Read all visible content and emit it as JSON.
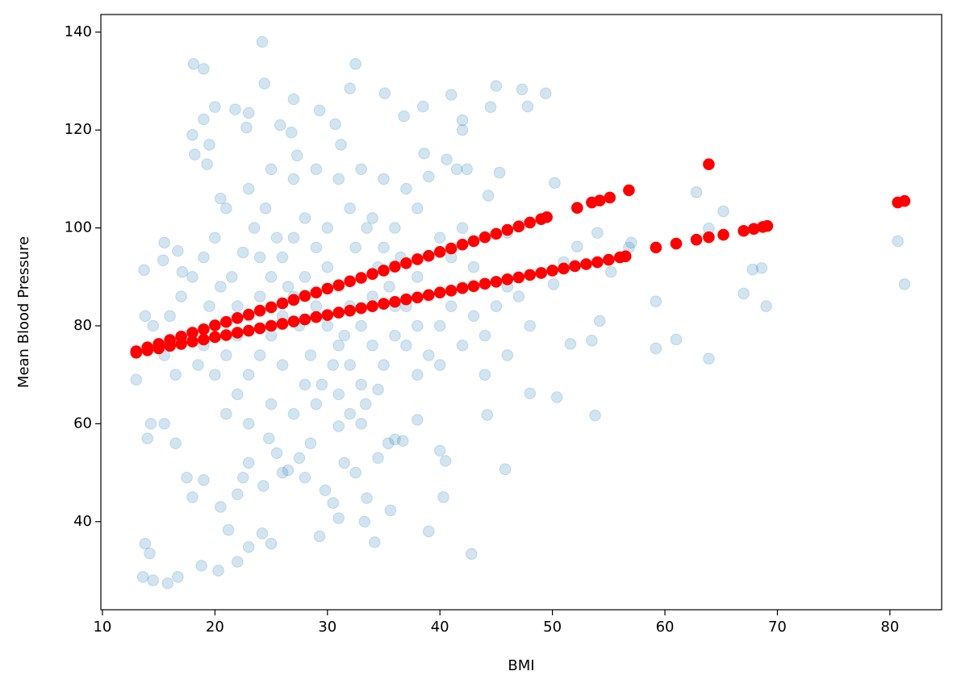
{
  "chart_data": {
    "type": "scatter",
    "x_label": "BMI",
    "y_label": "Mean Blood Pressure",
    "xlim": [
      9.86,
      84.6
    ],
    "ylim": [
      22.0,
      143.6
    ],
    "xticks": [
      10,
      20,
      30,
      40,
      50,
      60,
      70,
      80
    ],
    "yticks": [
      40,
      60,
      80,
      100,
      120,
      140
    ],
    "grid": false,
    "series": [
      {
        "color": "#1f77b4",
        "opacity": 0.2,
        "x": [
          24.2,
          18.1,
          19,
          32.5,
          24.4,
          32,
          45,
          47.3,
          49.4,
          41,
          35.1,
          38.5,
          44.5,
          47.8,
          20,
          21.8,
          23,
          27,
          29.3,
          36.8,
          42,
          42,
          50.2,
          62.8,
          63.9,
          65.2,
          80.7,
          81.3,
          69,
          67,
          68.6,
          67.8,
          59.2,
          59.2,
          61,
          63.9,
          53.8,
          45.8,
          42.8,
          39,
          34.2,
          13.6,
          14.5,
          15.8,
          16.7,
          14.2,
          13.8,
          18.8,
          20.3,
          22,
          23,
          25,
          24.2,
          29.3,
          31,
          33.3,
          35.6,
          40.3,
          40,
          40.5,
          36,
          36.7,
          38,
          44.2,
          50.4,
          48,
          51.6,
          53.5,
          54.2,
          55.2,
          54,
          56.8,
          57,
          52.2,
          51,
          50.1,
          47.2,
          46,
          45.3,
          44.3,
          42.4,
          41.5,
          40.6,
          38.6,
          39,
          13,
          13.8,
          13.7,
          14.5,
          15.5,
          15.4,
          16.7,
          18,
          18.2,
          19,
          19.3,
          19.5,
          20.5,
          17.1,
          16.5,
          15.5,
          14,
          14.3,
          17.5,
          18,
          19,
          20.5,
          21.2,
          22,
          22.5,
          23,
          24.3,
          24.8,
          25.5,
          26,
          26.5,
          27.5,
          28,
          28.5,
          29.8,
          30.5,
          31.5,
          32.5,
          33.5,
          34.5,
          35.4,
          31,
          32,
          33.4,
          34.5,
          20,
          21,
          22,
          23,
          24,
          25,
          26,
          27,
          28,
          29,
          30,
          31,
          32,
          33,
          34,
          35,
          36,
          37,
          38,
          39,
          21.5,
          22.5,
          23.5,
          24.5,
          25.5,
          26.5,
          27.5,
          28.5,
          29.5,
          30.5,
          31.5,
          32.5,
          33.5,
          34.5,
          35.5,
          36.5,
          19,
          19.5,
          20.5,
          18.5,
          17.5,
          16.5,
          15.5,
          16,
          17,
          18,
          22,
          23,
          24,
          25,
          26,
          27,
          28,
          29,
          30,
          31,
          32,
          33,
          34,
          35,
          36,
          37,
          38,
          39,
          40,
          41,
          42,
          43,
          44,
          45,
          46,
          47,
          41,
          42,
          43,
          40,
          38,
          37,
          35,
          33,
          31,
          29,
          27,
          25,
          23,
          21,
          20,
          19,
          21,
          23,
          25,
          27,
          29,
          31,
          33,
          26,
          28,
          30,
          32,
          34,
          24,
          22,
          20,
          36,
          38,
          40,
          42,
          44,
          46,
          48,
          26.8,
          25.8,
          22.8,
          27.3,
          31.2,
          30.7
        ],
        "y": [
          138,
          133.5,
          132.5,
          133.5,
          129.5,
          128.5,
          129,
          128.3,
          127.5,
          127.2,
          127.5,
          124.8,
          124.7,
          124.8,
          124.7,
          124.2,
          123.5,
          126.3,
          124,
          122.8,
          122,
          120,
          109.2,
          107.3,
          99.9,
          103.4,
          97.3,
          88.5,
          84,
          86.6,
          91.8,
          91.5,
          85,
          75.4,
          77.2,
          73.3,
          61.7,
          50.7,
          33.4,
          38,
          35.8,
          28.7,
          28,
          27.4,
          28.7,
          33.5,
          35.5,
          31,
          30,
          31.8,
          34.8,
          35.5,
          37.6,
          37,
          40.7,
          40,
          42.3,
          45,
          54.5,
          52.4,
          56.8,
          56.5,
          60.8,
          61.8,
          65.4,
          66.2,
          76.3,
          77,
          81,
          91,
          99,
          96,
          97,
          96.2,
          93,
          88.5,
          100.5,
          99,
          111.3,
          106.6,
          112,
          112,
          114,
          115.2,
          110.5,
          69,
          82,
          91.4,
          80,
          97,
          93.4,
          95.3,
          119,
          115,
          122.2,
          113,
          117,
          106,
          91,
          56,
          60,
          57,
          60,
          49,
          45,
          48.5,
          43,
          38.3,
          45.6,
          49,
          52,
          47.3,
          57,
          54,
          50,
          50.5,
          53,
          49,
          56,
          46.4,
          43.8,
          52,
          50,
          44.8,
          53,
          56,
          59.5,
          62,
          64,
          67,
          70,
          74,
          78,
          82,
          86,
          90,
          94,
          98,
          102,
          96,
          92,
          88,
          84,
          80,
          76,
          72,
          78,
          84,
          90,
          86,
          90,
          95,
          100,
          104,
          98,
          88,
          80,
          74,
          68,
          72,
          78,
          96,
          100,
          92,
          88,
          94,
          76,
          84,
          88,
          72,
          78,
          70,
          74,
          82,
          86,
          90,
          66,
          70,
          74,
          78,
          82,
          86,
          90,
          84,
          80,
          76,
          72,
          68,
          86,
          96,
          100,
          76,
          70,
          74,
          80,
          84,
          88,
          82,
          78,
          84,
          88,
          86,
          94,
          100,
          92,
          98,
          104,
          108,
          110,
          112,
          110,
          112,
          110,
          112,
          108,
          104,
          98,
          94,
          62,
          60,
          64,
          62,
          64,
          66,
          60,
          72,
          68,
          100,
          104,
          102,
          94,
          84,
          80,
          84,
          80,
          72,
          76,
          70,
          74,
          80,
          119.5,
          121,
          120.5,
          114.8,
          117,
          121.2
        ]
      },
      {
        "color": "#ff0000",
        "opacity": 1,
        "x": [
          13,
          14,
          15,
          16,
          17,
          18,
          19,
          20,
          21,
          22,
          23,
          24,
          25,
          26,
          27,
          28,
          29,
          30,
          31,
          32,
          33,
          34,
          35,
          36,
          37,
          38,
          39,
          40,
          41,
          42,
          43,
          44,
          45,
          46,
          47,
          48,
          49,
          49.5,
          52.2,
          53.5,
          54.2,
          55.1,
          56.8,
          63.9
        ],
        "y": [
          74.8,
          75.6,
          76.3,
          77.1,
          77.8,
          78.6,
          79.3,
          80.1,
          80.8,
          81.6,
          82.3,
          83.1,
          83.8,
          84.6,
          85.3,
          86.1,
          86.8,
          87.6,
          88.3,
          89.1,
          89.8,
          90.6,
          91.3,
          92.1,
          92.8,
          93.6,
          94.3,
          95.1,
          95.8,
          96.6,
          97.3,
          98.1,
          98.8,
          99.6,
          100.3,
          101.1,
          101.8,
          102.2,
          104.1,
          105.2,
          105.6,
          106.2,
          107.7,
          113
        ]
      },
      {
        "color": "#ff0000",
        "opacity": 1,
        "x": [
          13,
          14,
          15,
          16,
          17,
          18,
          19,
          20,
          21,
          22,
          23,
          24,
          25,
          26,
          27,
          28,
          29,
          30,
          31,
          32,
          33,
          34,
          35,
          36,
          37,
          38,
          39,
          40,
          41,
          42,
          43,
          44,
          45,
          46,
          47,
          48,
          49,
          50,
          51,
          52,
          53,
          54,
          55,
          56,
          56.5,
          59.2,
          61,
          62.8,
          63.9,
          65.2,
          67,
          67.9,
          68.7,
          69.1,
          80.7,
          81.3
        ],
        "y": [
          74.5,
          75.0,
          75.4,
          75.9,
          76.3,
          76.8,
          77.2,
          77.7,
          78.1,
          78.6,
          79.0,
          79.5,
          80.0,
          80.4,
          80.9,
          81.3,
          81.8,
          82.2,
          82.7,
          83.1,
          83.6,
          84.0,
          84.5,
          84.9,
          85.4,
          85.8,
          86.3,
          86.8,
          87.2,
          87.7,
          88.1,
          88.6,
          89.0,
          89.5,
          89.9,
          90.4,
          90.8,
          91.3,
          91.7,
          92.2,
          92.6,
          93.0,
          93.5,
          94.0,
          94.2,
          96.0,
          96.8,
          97.6,
          98.1,
          98.6,
          99.4,
          99.8,
          100.2,
          100.4,
          105.2,
          105.5
        ]
      }
    ]
  }
}
